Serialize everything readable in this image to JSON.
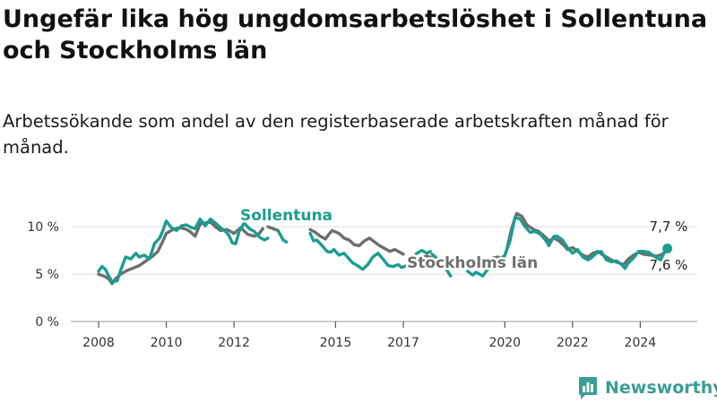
{
  "header": {
    "title": "Ungefär lika hög ungdomsarbetslöshet i Sollentuna och Stockholms län",
    "subtitle": "Arbetssökande som andel av den registerbaserade arbetskraften månad för månad."
  },
  "brand": {
    "name": "Newsworthy",
    "icon": "bar-chart-logo-icon",
    "color": "#3a9e96"
  },
  "colors": {
    "sollentuna": "#1a9e8f",
    "stockholm": "#6e6e6e",
    "grid": "#dddddd"
  },
  "chart_data": {
    "type": "line",
    "title": "Ungefär lika hög ungdomsarbetslöshet i Sollentuna och Stockholms län",
    "subtitle": "Arbetssökande som andel av den registerbaserade arbetskraften månad för månad.",
    "xlabel": "",
    "ylabel": "",
    "xlim": [
      2008,
      2025.2
    ],
    "ylim": [
      0,
      12
    ],
    "grid": true,
    "y_ticks": [
      0,
      5,
      10
    ],
    "y_tick_labels": [
      "0 %",
      "5 %",
      "10 %"
    ],
    "x_ticks": [
      2008,
      2010,
      2012,
      2015,
      2017,
      2020,
      2022,
      2024
    ],
    "x_tick_labels": [
      "2008",
      "2010",
      "2012",
      "2015",
      "2017",
      "2020",
      "2022",
      "2024"
    ],
    "series": [
      {
        "name": "Stockholms län",
        "label": "Stockholms län",
        "end_label": "7,6 %",
        "segments": [
          [
            [
              2008.0,
              5.0
            ],
            [
              2008.15,
              4.8
            ],
            [
              2008.3,
              4.5
            ],
            [
              2008.4,
              4.0
            ],
            [
              2008.5,
              4.5
            ],
            [
              2008.65,
              5.0
            ],
            [
              2008.85,
              5.4
            ],
            [
              2009.0,
              5.6
            ],
            [
              2009.2,
              5.9
            ],
            [
              2009.4,
              6.4
            ],
            [
              2009.6,
              6.9
            ],
            [
              2009.75,
              7.4
            ],
            [
              2009.9,
              8.5
            ],
            [
              2010.0,
              9.3
            ],
            [
              2010.2,
              9.7
            ],
            [
              2010.4,
              9.9
            ],
            [
              2010.6,
              9.7
            ],
            [
              2010.7,
              9.5
            ],
            [
              2010.85,
              9.0
            ],
            [
              2011.0,
              10.3
            ],
            [
              2011.15,
              10.4
            ],
            [
              2011.3,
              10.5
            ],
            [
              2011.45,
              10.0
            ],
            [
              2011.6,
              9.6
            ],
            [
              2011.8,
              9.7
            ],
            [
              2012.0,
              9.3
            ],
            [
              2012.2,
              9.9
            ],
            [
              2012.4,
              9.2
            ],
            [
              2012.6,
              9.0
            ],
            [
              2012.75,
              9.3
            ],
            [
              2012.85,
              9.8
            ]
          ],
          [
            [
              2013.0,
              10.0
            ],
            [
              2013.3,
              9.6
            ]
          ],
          [
            [
              2014.25,
              9.7
            ],
            [
              2014.4,
              9.4
            ],
            [
              2014.55,
              9.0
            ],
            [
              2014.7,
              8.7
            ],
            [
              2014.8,
              9.2
            ],
            [
              2014.9,
              9.6
            ],
            [
              2015.1,
              9.3
            ],
            [
              2015.25,
              8.8
            ],
            [
              2015.4,
              8.6
            ],
            [
              2015.55,
              8.1
            ],
            [
              2015.7,
              8.0
            ],
            [
              2015.85,
              8.5
            ],
            [
              2016.0,
              8.8
            ],
            [
              2016.15,
              8.4
            ],
            [
              2016.3,
              8.0
            ],
            [
              2016.45,
              7.7
            ],
            [
              2016.6,
              7.4
            ],
            [
              2016.75,
              7.6
            ],
            [
              2016.9,
              7.3
            ],
            [
              2017.0,
              7.1
            ]
          ],
          [
            [
              2017.55,
              6.8
            ],
            [
              2017.7,
              6.9
            ],
            [
              2017.85,
              6.7
            ]
          ],
          [
            [
              2019.65,
              6.7
            ],
            [
              2019.8,
              6.8
            ],
            [
              2019.95,
              6.5
            ],
            [
              2020.05,
              7.5
            ],
            [
              2020.2,
              9.8
            ],
            [
              2020.35,
              11.4
            ],
            [
              2020.5,
              11.1
            ],
            [
              2020.65,
              10.2
            ],
            [
              2020.85,
              9.7
            ],
            [
              2021.0,
              9.5
            ],
            [
              2021.2,
              8.9
            ],
            [
              2021.3,
              8.5
            ],
            [
              2021.45,
              8.8
            ],
            [
              2021.6,
              8.5
            ],
            [
              2021.75,
              8.0
            ],
            [
              2021.85,
              7.6
            ],
            [
              2022.0,
              7.8
            ],
            [
              2022.15,
              7.4
            ],
            [
              2022.3,
              7.0
            ],
            [
              2022.45,
              6.8
            ],
            [
              2022.6,
              7.2
            ],
            [
              2022.75,
              7.4
            ],
            [
              2022.9,
              7.0
            ],
            [
              2023.05,
              6.7
            ],
            [
              2023.2,
              6.4
            ],
            [
              2023.35,
              6.2
            ],
            [
              2023.5,
              6.0
            ],
            [
              2023.65,
              6.6
            ],
            [
              2023.8,
              7.0
            ],
            [
              2023.95,
              7.3
            ],
            [
              2024.1,
              7.1
            ],
            [
              2024.3,
              7.0
            ],
            [
              2024.5,
              6.9
            ],
            [
              2024.65,
              7.1
            ],
            [
              2024.8,
              7.6
            ]
          ]
        ]
      },
      {
        "name": "Sollentuna",
        "label": "Sollentuna",
        "end_label": "7,7 %",
        "segments": [
          [
            [
              2008.0,
              5.3
            ],
            [
              2008.1,
              5.8
            ],
            [
              2008.2,
              5.5
            ],
            [
              2008.3,
              4.8
            ],
            [
              2008.4,
              4.2
            ],
            [
              2008.55,
              4.3
            ],
            [
              2008.65,
              5.4
            ],
            [
              2008.8,
              6.8
            ],
            [
              2008.95,
              6.6
            ],
            [
              2009.1,
              7.2
            ],
            [
              2009.2,
              6.8
            ],
            [
              2009.35,
              7.0
            ],
            [
              2009.5,
              6.6
            ],
            [
              2009.65,
              8.2
            ],
            [
              2009.8,
              8.8
            ],
            [
              2009.9,
              9.6
            ],
            [
              2010.0,
              10.6
            ],
            [
              2010.15,
              9.9
            ],
            [
              2010.3,
              9.6
            ],
            [
              2010.45,
              10.1
            ],
            [
              2010.6,
              10.2
            ],
            [
              2010.75,
              9.9
            ],
            [
              2010.85,
              9.8
            ],
            [
              2011.0,
              10.8
            ],
            [
              2011.15,
              10.1
            ],
            [
              2011.3,
              10.8
            ],
            [
              2011.45,
              10.4
            ],
            [
              2011.6,
              9.9
            ],
            [
              2011.75,
              9.5
            ],
            [
              2011.85,
              9.1
            ],
            [
              2011.95,
              8.3
            ],
            [
              2012.05,
              8.2
            ],
            [
              2012.15,
              9.5
            ],
            [
              2012.3,
              10.4
            ],
            [
              2012.45,
              9.8
            ],
            [
              2012.6,
              9.5
            ],
            [
              2012.75,
              8.9
            ],
            [
              2012.9,
              8.6
            ],
            [
              2013.0,
              8.8
            ]
          ],
          [
            [
              2013.3,
              9.6
            ],
            [
              2013.45,
              8.6
            ],
            [
              2013.55,
              8.4
            ]
          ],
          [
            [
              2014.25,
              9.3
            ],
            [
              2014.35,
              8.5
            ],
            [
              2014.45,
              8.6
            ],
            [
              2014.55,
              8.2
            ],
            [
              2014.65,
              7.8
            ],
            [
              2014.75,
              7.4
            ],
            [
              2014.85,
              7.3
            ],
            [
              2014.95,
              7.6
            ],
            [
              2015.1,
              7.0
            ],
            [
              2015.25,
              7.2
            ],
            [
              2015.4,
              6.6
            ],
            [
              2015.5,
              6.2
            ],
            [
              2015.65,
              5.9
            ],
            [
              2015.8,
              5.5
            ],
            [
              2015.95,
              6.0
            ],
            [
              2016.1,
              6.8
            ],
            [
              2016.25,
              7.2
            ],
            [
              2016.4,
              6.6
            ],
            [
              2016.55,
              5.9
            ],
            [
              2016.7,
              5.8
            ],
            [
              2016.85,
              6.0
            ],
            [
              2016.95,
              5.7
            ],
            [
              2017.1,
              5.9
            ],
            [
              2017.25,
              6.5
            ],
            [
              2017.4,
              7.2
            ],
            [
              2017.55,
              7.5
            ],
            [
              2017.7,
              7.2
            ],
            [
              2017.8,
              7.4
            ]
          ],
          [
            [
              2017.85,
              7.1
            ],
            [
              2017.95,
              6.8
            ],
            [
              2018.0,
              6.6
            ]
          ],
          [
            [
              2018.25,
              5.6
            ],
            [
              2018.4,
              4.8
            ]
          ],
          [
            [
              2018.9,
              5.3
            ],
            [
              2019.05,
              4.9
            ],
            [
              2019.15,
              5.2
            ],
            [
              2019.25,
              5.0
            ],
            [
              2019.35,
              4.8
            ],
            [
              2019.45,
              5.3
            ],
            [
              2019.55,
              5.7
            ],
            [
              2019.7,
              6.0
            ],
            [
              2019.85,
              6.5
            ],
            [
              2020.0,
              7.0
            ],
            [
              2020.15,
              8.5
            ],
            [
              2020.3,
              11.0
            ],
            [
              2020.45,
              10.8
            ],
            [
              2020.6,
              10.0
            ],
            [
              2020.75,
              9.4
            ],
            [
              2020.9,
              9.5
            ],
            [
              2021.05,
              9.2
            ],
            [
              2021.2,
              8.6
            ],
            [
              2021.3,
              8.0
            ],
            [
              2021.45,
              9.0
            ],
            [
              2021.55,
              9.0
            ],
            [
              2021.7,
              8.6
            ],
            [
              2021.85,
              7.8
            ],
            [
              2022.0,
              7.2
            ],
            [
              2022.15,
              7.6
            ],
            [
              2022.3,
              6.8
            ],
            [
              2022.45,
              6.5
            ],
            [
              2022.55,
              6.7
            ],
            [
              2022.7,
              7.2
            ],
            [
              2022.85,
              7.4
            ],
            [
              2023.0,
              6.5
            ],
            [
              2023.15,
              6.3
            ],
            [
              2023.3,
              6.4
            ],
            [
              2023.45,
              6.0
            ],
            [
              2023.55,
              5.6
            ],
            [
              2023.65,
              6.2
            ],
            [
              2023.8,
              6.7
            ],
            [
              2023.95,
              7.4
            ],
            [
              2024.1,
              7.4
            ],
            [
              2024.25,
              7.3
            ],
            [
              2024.45,
              6.8
            ],
            [
              2024.6,
              6.5
            ],
            [
              2024.7,
              7.2
            ],
            [
              2024.8,
              7.7
            ]
          ]
        ]
      }
    ]
  }
}
